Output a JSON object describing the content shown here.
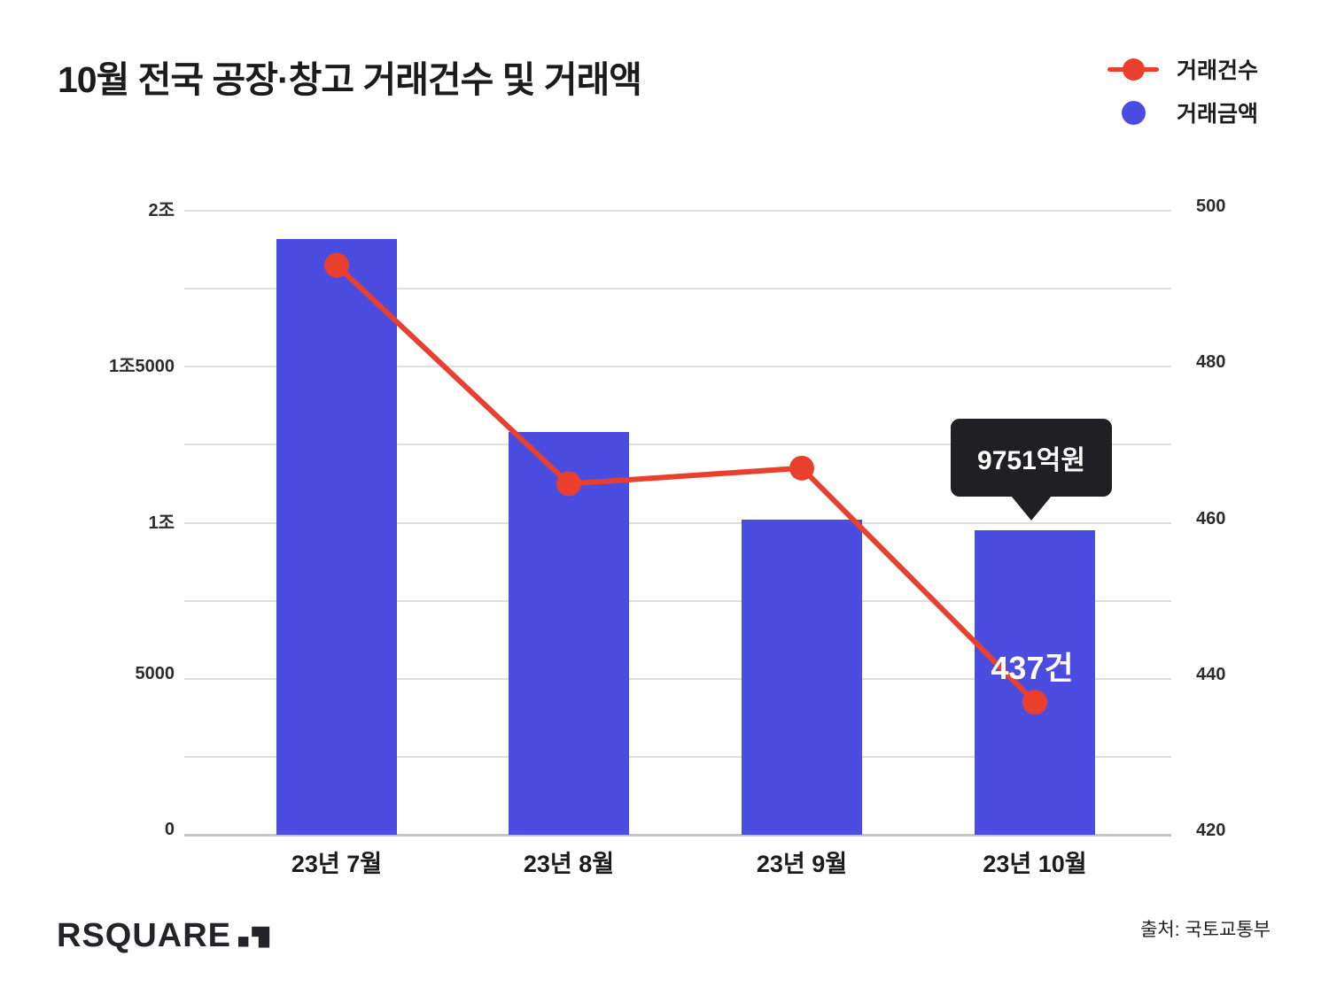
{
  "title": "10월 전국 공장·창고 거래건수 및 거래액",
  "legend": [
    {
      "label": "거래건수",
      "marker": "line-dot",
      "color": "#e8402c"
    },
    {
      "label": "거래금액",
      "marker": "dot",
      "color": "#4b4de1"
    }
  ],
  "chart_data": {
    "type": "bar+line",
    "categories": [
      "23년 7월",
      "23년 8월",
      "23년 9월",
      "23년 10월"
    ],
    "series": [
      {
        "name": "거래금액",
        "type": "bar",
        "axis": "left",
        "unit": "억원",
        "color": "#4b4de1",
        "values": [
          19100,
          12900,
          10100,
          9751
        ]
      },
      {
        "name": "거래건수",
        "type": "line",
        "axis": "right",
        "unit": "건",
        "color": "#e8402c",
        "values": [
          493,
          465,
          467,
          437
        ]
      }
    ],
    "left_axis": {
      "min": 0,
      "max": 20000,
      "tick_values": [
        20000,
        15000,
        10000,
        5000,
        0
      ],
      "tick_labels": [
        "2조",
        "1조5000",
        "1조",
        "5000",
        "0"
      ],
      "minor_step": 2500
    },
    "right_axis": {
      "min": 420,
      "max": 500,
      "tick_values": [
        500,
        480,
        460,
        440,
        420
      ],
      "tick_labels": [
        "500",
        "480",
        "460",
        "440",
        "420"
      ]
    },
    "grid": "horizontal",
    "legend_position": "top-right",
    "annotations": {
      "callout": "9751억원",
      "point_label": "437건"
    }
  },
  "footer": {
    "logo_text": "RSQUARE",
    "source": "출처: 국토교통부"
  },
  "colors": {
    "bar_blue": "#4b4de1",
    "line_red": "#e8402c",
    "callout_bg": "#202024",
    "gridline": "#dedede",
    "baseline": "#c5c5c9",
    "text_dark": "#1b1b1b",
    "background": "#ffffff"
  }
}
